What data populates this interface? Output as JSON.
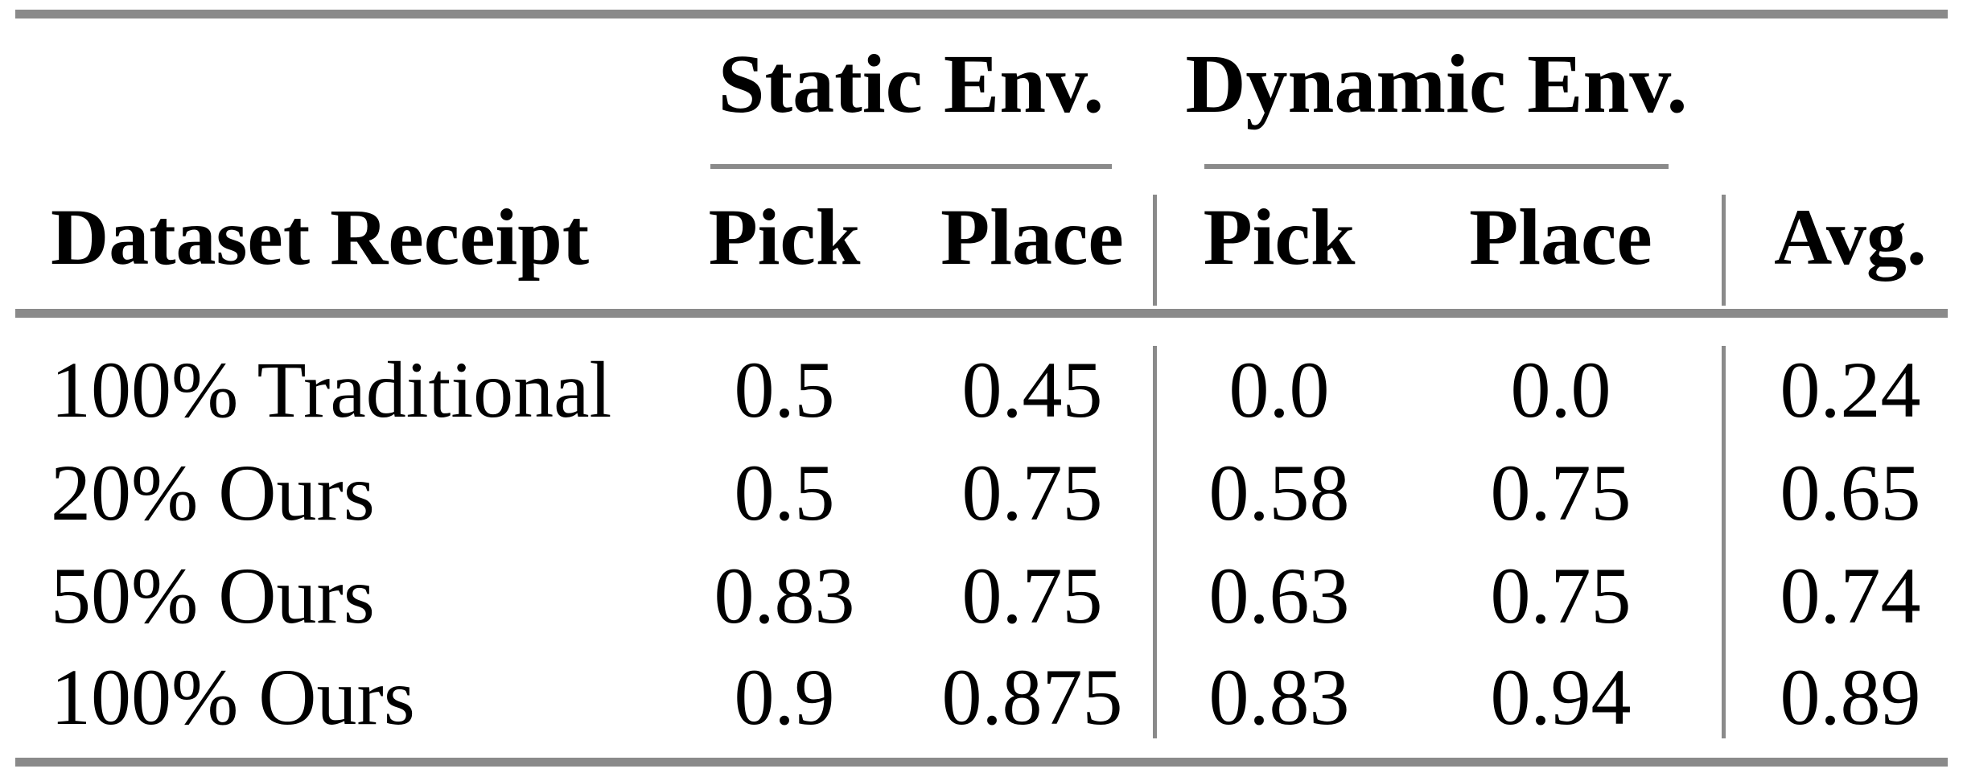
{
  "colors": {
    "background": "#ffffff",
    "text": "#000000",
    "rule_gray": "#8a8a8a"
  },
  "table": {
    "first_column_header": "Dataset Receipt",
    "groups": [
      {
        "label": "Static Env.",
        "columns": [
          "Pick",
          "Place"
        ]
      },
      {
        "label": "Dynamic Env.",
        "columns": [
          "Pick",
          "Place"
        ]
      }
    ],
    "avg_header": "Avg.",
    "rows": [
      {
        "label": "100% Traditional",
        "values": [
          "0.5",
          "0.45",
          "0.0",
          "0.0",
          "0.24"
        ]
      },
      {
        "label": "20% Ours",
        "values": [
          "0.5",
          "0.75",
          "0.58",
          "0.75",
          "0.65"
        ]
      },
      {
        "label": "50% Ours",
        "values": [
          "0.83",
          "0.75",
          "0.63",
          "0.75",
          "0.74"
        ]
      },
      {
        "label": "100% Ours",
        "values": [
          "0.9",
          "0.875",
          "0.83",
          "0.94",
          "0.89"
        ]
      }
    ]
  },
  "chart_data": {
    "type": "table",
    "columns": [
      "Dataset Receipt",
      "Static Env. Pick",
      "Static Env. Place",
      "Dynamic Env. Pick",
      "Dynamic Env. Place",
      "Avg."
    ],
    "rows": [
      [
        "100% Traditional",
        0.5,
        0.45,
        0.0,
        0.0,
        0.24
      ],
      [
        "20% Ours",
        0.5,
        0.75,
        0.58,
        0.75,
        0.65
      ],
      [
        "50% Ours",
        0.83,
        0.75,
        0.63,
        0.75,
        0.74
      ],
      [
        "100% Ours",
        0.9,
        0.875,
        0.83,
        0.94,
        0.89
      ]
    ]
  }
}
